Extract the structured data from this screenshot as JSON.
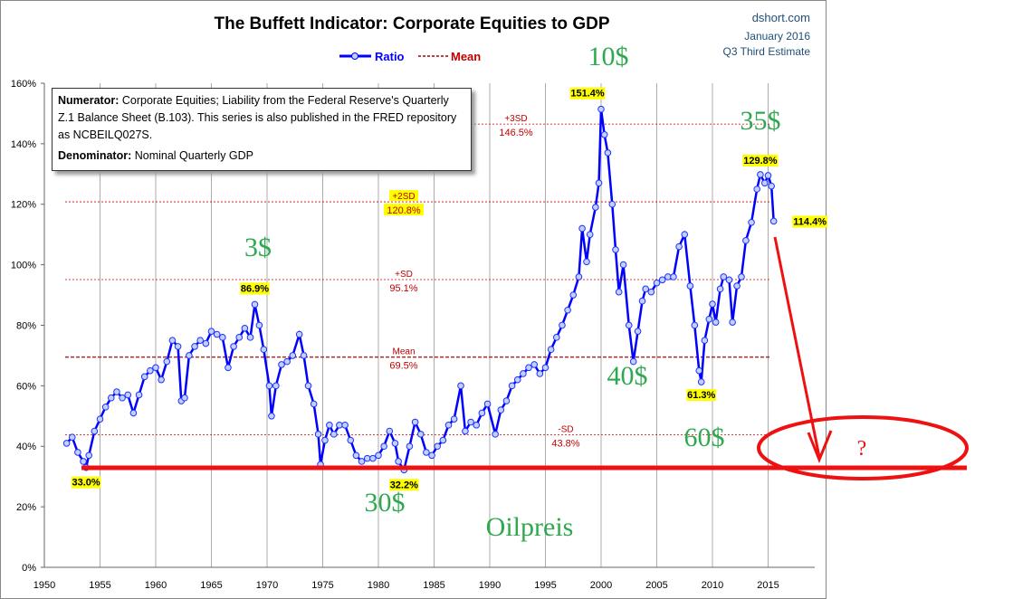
{
  "chart_data": {
    "type": "line",
    "title": "The Buffett Indicator: Corporate Equities to GDP",
    "source": "dshort.com",
    "date": "January 2016",
    "estimate": "Q3 Third Estimate",
    "legend": [
      {
        "name": "Ratio",
        "color": "#0000ff"
      },
      {
        "name": "Mean",
        "color": "#a00000"
      }
    ],
    "legend_placement": "top-center",
    "xlim": [
      1950,
      2020
    ],
    "ylim": [
      0,
      160
    ],
    "x_ticks": [
      "1950",
      "1955",
      "1960",
      "1965",
      "1970",
      "1975",
      "1980",
      "1985",
      "1990",
      "1995",
      "2000",
      "2005",
      "2010",
      "2015"
    ],
    "y_ticks": [
      "0%",
      "20%",
      "40%",
      "60%",
      "80%",
      "100%",
      "120%",
      "140%",
      "160%"
    ],
    "grid": "vertical",
    "note": {
      "numerator_label": "Numerator:",
      "numerator_text": " Corporate Equities; Liability from the Federal Reserve's Quarterly Z.1 Balance Sheet (B.103). This series is also published in the FRED repository  as NCBEILQ027S.",
      "denominator_label": "Denominator:",
      "denominator_text": " Nominal Quarterly GDP"
    },
    "reference_lines": [
      {
        "label": "+3SD",
        "value": 146.5,
        "value_label": "146.5%"
      },
      {
        "label": "+2SD",
        "value": 120.8,
        "value_label": "120.8%"
      },
      {
        "label": "+SD",
        "value": 95.1,
        "value_label": "95.1%"
      },
      {
        "label": "Mean",
        "value": 69.5,
        "value_label": "69.5%"
      },
      {
        "label": "-SD",
        "value": 43.8,
        "value_label": "43.8%"
      }
    ],
    "data_labels": [
      {
        "x": 1953.75,
        "y": 33.0,
        "text": "33.0%"
      },
      {
        "x": 1968.9,
        "y": 86.9,
        "text": "86.9%"
      },
      {
        "x": 1982.3,
        "y": 32.2,
        "text": "32.2%"
      },
      {
        "x": 2000,
        "y": 151.4,
        "text": "151.4%"
      },
      {
        "x": 2009,
        "y": 61.3,
        "text": "61.3%"
      },
      {
        "x": 2014.3,
        "y": 129.8,
        "text": "129.8%"
      },
      {
        "x": 2015.5,
        "y": 114.4,
        "text": "114.4%"
      }
    ],
    "series": [
      {
        "name": "Ratio",
        "x": [
          1952,
          1952.5,
          1953,
          1953.5,
          1953.75,
          1954,
          1954.5,
          1955,
          1955.5,
          1956,
          1956.5,
          1957,
          1957.5,
          1958,
          1958.5,
          1959,
          1959.5,
          1960,
          1960.5,
          1961,
          1961.5,
          1962,
          1962.3,
          1962.6,
          1963,
          1963.5,
          1964,
          1964.5,
          1965,
          1965.5,
          1966,
          1966.5,
          1967,
          1967.5,
          1968,
          1968.5,
          1968.9,
          1969.3,
          1969.7,
          1970.2,
          1970.4,
          1970.8,
          1971.3,
          1971.8,
          1972.3,
          1972.9,
          1973.3,
          1973.7,
          1974.2,
          1974.6,
          1974.8,
          1975.2,
          1975.6,
          1976,
          1976.5,
          1977,
          1977.5,
          1978,
          1978.5,
          1979,
          1979.5,
          1980,
          1980.5,
          1981,
          1981.5,
          1981.8,
          1982.3,
          1982.8,
          1983.3,
          1983.8,
          1984.3,
          1984.8,
          1985.3,
          1985.8,
          1986.3,
          1986.8,
          1987.4,
          1987.8,
          1988.3,
          1988.8,
          1989.3,
          1989.8,
          1990.5,
          1991,
          1991.5,
          1992,
          1992.5,
          1993,
          1993.5,
          1994,
          1994.5,
          1995,
          1995.5,
          1996,
          1996.5,
          1997,
          1997.5,
          1998,
          1998.3,
          1998.7,
          1999,
          1999.5,
          1999.8,
          2000,
          2000.3,
          2000.6,
          2001,
          2001.3,
          2001.6,
          2002,
          2002.5,
          2002.9,
          2003.3,
          2003.7,
          2004,
          2004.5,
          2005,
          2005.5,
          2006,
          2006.5,
          2007,
          2007.5,
          2008,
          2008.4,
          2008.8,
          2009,
          2009.3,
          2009.7,
          2010,
          2010.3,
          2010.7,
          2011,
          2011.5,
          2011.8,
          2012.2,
          2012.6,
          2013,
          2013.5,
          2014,
          2014.3,
          2014.7,
          2015,
          2015.3,
          2015.5
        ],
        "values": [
          41,
          43,
          38,
          35,
          33,
          37,
          45,
          49,
          53,
          56,
          58,
          56,
          57,
          51,
          57,
          63,
          65,
          66,
          62,
          68,
          75,
          73,
          55,
          56,
          70,
          73,
          75,
          74,
          78,
          77,
          76,
          66,
          73,
          76,
          79,
          76,
          86.9,
          80,
          72,
          60,
          50,
          60,
          67,
          68,
          70,
          77,
          70,
          60,
          54,
          44,
          34,
          42,
          47,
          44,
          47,
          47,
          42,
          37,
          35,
          36,
          36,
          37,
          40,
          45,
          41,
          35,
          32.2,
          40,
          48,
          44,
          38,
          37,
          40,
          42,
          47,
          49,
          60,
          45,
          48,
          47,
          51,
          54,
          44,
          52,
          55,
          60,
          62,
          64,
          66,
          67,
          64,
          66,
          72,
          76,
          80,
          85,
          90,
          96,
          112,
          101,
          110,
          119,
          127,
          151.4,
          143,
          137,
          120,
          105,
          91,
          100,
          80,
          68,
          78,
          88,
          92,
          91,
          94,
          95,
          96,
          96,
          106,
          110,
          93,
          80,
          65,
          61.3,
          75,
          82,
          87,
          81,
          92,
          96,
          95,
          81,
          93,
          96,
          108,
          114,
          125,
          129.8,
          127,
          129.5,
          126,
          114.4
        ]
      }
    ]
  },
  "annotations": {
    "green_labels": [
      "10$",
      "35$",
      "3$",
      "40$",
      "60$",
      "30$",
      "Oilpreis"
    ],
    "question_mark": "?"
  }
}
